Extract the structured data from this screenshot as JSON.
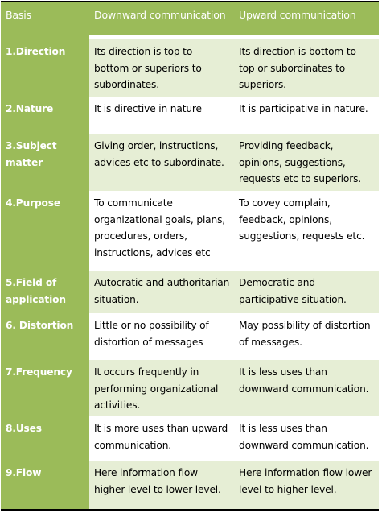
{
  "table": {
    "header": {
      "basis": "Basis",
      "downward": "Downward communication",
      "upward": "Upward communication"
    },
    "rows": [
      {
        "basis": "1.Direction",
        "downward": "Its direction is top to bottom or superiors to subordinates.",
        "upward": "Its direction is bottom to top or subordinates to superiors."
      },
      {
        "basis": "2.Nature",
        "downward": "It is directive in nature",
        "upward": "It is participative in nature."
      },
      {
        "basis": "3.Subject matter",
        "downward": "Giving order, instructions, advices etc to subordinate.",
        "upward": "Providing feedback, opinions, suggestions, requests etc to superiors."
      },
      {
        "basis": "4.Purpose",
        "downward": "To communicate organizational goals, plans, procedures, orders, instructions, advices etc",
        "upward": "To covey complain, feedback, opinions, suggestions, requests etc."
      },
      {
        "basis": "5.Field of application",
        "downward": "Autocratic and authoritarian situation.",
        "upward": "Democratic and participative situation."
      },
      {
        "basis": "6. Distortion",
        "downward": "Little or no possibility of distortion of messages",
        "upward": "May possibility of distortion of messages."
      },
      {
        "basis": "7.Frequency",
        "downward": "It occurs frequently in performing organizational activities.",
        "upward": "It is less uses than downward communication."
      },
      {
        "basis": "8.Uses",
        "downward": "It is more uses than upward communication.",
        "upward": "It is less uses than downward communication."
      },
      {
        "basis": "9.Flow",
        "downward": "Here information flow higher level to lower level.",
        "upward": "Here information flow lower level to higher level."
      }
    ]
  },
  "colors": {
    "basis_column": "#9bbb59",
    "shaded_row": "#e6eed5",
    "white_row": "#ffffff",
    "border": "#000000"
  }
}
